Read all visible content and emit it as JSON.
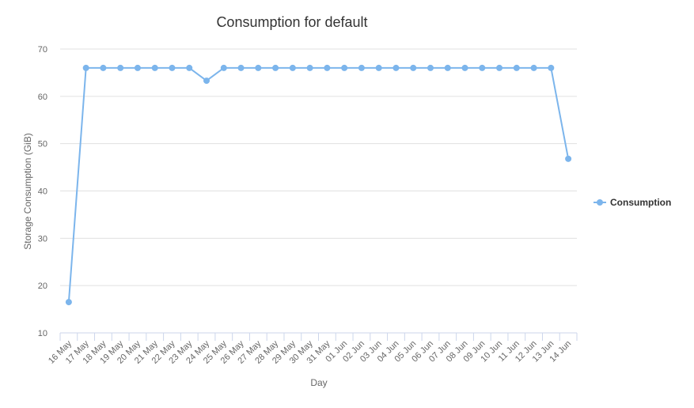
{
  "chart_data": {
    "type": "line",
    "title": "Consumption for default",
    "xlabel": "Day",
    "ylabel": "Storage Consumption (GiB)",
    "ylim": [
      10,
      70
    ],
    "yticks": [
      10,
      20,
      30,
      40,
      50,
      60,
      70
    ],
    "grid": true,
    "legend_position": "right",
    "categories": [
      "16 May",
      "17 May",
      "18 May",
      "19 May",
      "20 May",
      "21 May",
      "22 May",
      "23 May",
      "24 May",
      "25 May",
      "26 May",
      "27 May",
      "28 May",
      "29 May",
      "30 May",
      "31 May",
      "01 Jun",
      "02 Jun",
      "03 Jun",
      "04 Jun",
      "05 Jun",
      "06 Jun",
      "07 Jun",
      "08 Jun",
      "09 Jun",
      "10 Jun",
      "11 Jun",
      "12 Jun",
      "13 Jun",
      "14 Jun"
    ],
    "series": [
      {
        "name": "Consumption",
        "color": "#7cb5ec",
        "values": [
          16.5,
          66,
          66,
          66,
          66,
          66,
          66,
          66,
          63.3,
          66,
          66,
          66,
          66,
          66,
          66,
          66,
          66,
          66,
          66,
          66,
          66,
          66,
          66,
          66,
          66,
          66,
          66,
          66,
          66,
          46.8
        ]
      }
    ]
  }
}
